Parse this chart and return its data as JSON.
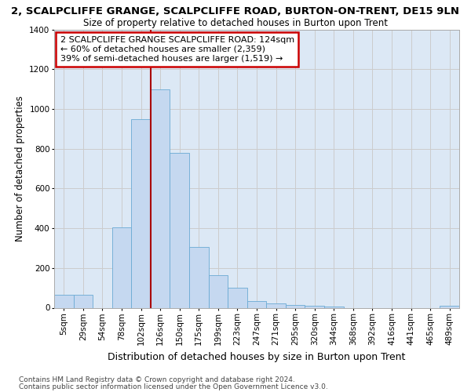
{
  "title": "2, SCALPCLIFFE GRANGE, SCALPCLIFFE ROAD, BURTON-ON-TRENT, DE15 9LN",
  "subtitle": "Size of property relative to detached houses in Burton upon Trent",
  "xlabel": "Distribution of detached houses by size in Burton upon Trent",
  "ylabel": "Number of detached properties",
  "footnote1": "Contains HM Land Registry data © Crown copyright and database right 2024.",
  "footnote2": "Contains public sector information licensed under the Open Government Licence v3.0.",
  "bar_labels": [
    "5sqm",
    "29sqm",
    "54sqm",
    "78sqm",
    "102sqm",
    "126sqm",
    "150sqm",
    "175sqm",
    "199sqm",
    "223sqm",
    "247sqm",
    "271sqm",
    "295sqm",
    "320sqm",
    "344sqm",
    "368sqm",
    "392sqm",
    "416sqm",
    "441sqm",
    "465sqm",
    "489sqm"
  ],
  "bar_values": [
    65,
    65,
    0,
    405,
    950,
    1100,
    780,
    305,
    165,
    100,
    35,
    20,
    15,
    10,
    5,
    0,
    0,
    0,
    0,
    0,
    10
  ],
  "bar_color": "#c5d8f0",
  "bar_edge_color": "#6aaad4",
  "reference_line_label": "2 SCALPCLIFFE GRANGE SCALPCLIFFE ROAD: 124sqm",
  "annotation_line1": "← 60% of detached houses are smaller (2,359)",
  "annotation_line2": "39% of semi-detached houses are larger (1,519) →",
  "annotation_box_color": "#ffffff",
  "annotation_box_edge": "#cc0000",
  "ylim": [
    0,
    1400
  ],
  "yticks": [
    0,
    200,
    400,
    600,
    800,
    1000,
    1200,
    1400
  ],
  "grid_color": "#cccccc",
  "bg_color": "#dce8f5",
  "vline_color": "#aa0000",
  "vline_x_index": 5.0,
  "title_fontsize": 9.5,
  "subtitle_fontsize": 8.5,
  "annotation_fontsize": 8.0,
  "ylabel_fontsize": 8.5,
  "xlabel_fontsize": 9.0,
  "tick_fontsize": 7.5,
  "footnote_fontsize": 6.5
}
